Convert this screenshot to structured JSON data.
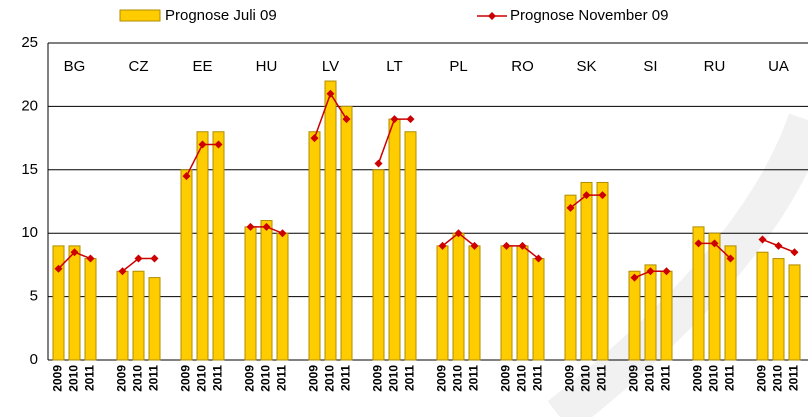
{
  "chart_data": {
    "type": "bar",
    "groups": [
      "BG",
      "CZ",
      "EE",
      "HU",
      "LV",
      "LT",
      "PL",
      "RO",
      "SK",
      "SI",
      "RU",
      "UA"
    ],
    "categories": [
      "2009",
      "2010",
      "2011",
      "2009",
      "2010",
      "2011",
      "2009",
      "2010",
      "2011",
      "2009",
      "2010",
      "2011",
      "2009",
      "2010",
      "2011",
      "2009",
      "2010",
      "2011",
      "2009",
      "2010",
      "2011",
      "2009",
      "2010",
      "2011",
      "2009",
      "2010",
      "2011",
      "2009",
      "2010",
      "2011",
      "2009",
      "2010",
      "2011",
      "2009",
      "2010",
      "2011"
    ],
    "series": [
      {
        "name": "Prognose Juli 09",
        "type": "bar",
        "color": "#ffcc00",
        "values": [
          9,
          9,
          8,
          7,
          7,
          6.5,
          15,
          18,
          18,
          10.5,
          11,
          10,
          18,
          22,
          20,
          15,
          19,
          18,
          9,
          10,
          9,
          9,
          9,
          8,
          13,
          14,
          14,
          7,
          7.5,
          7,
          10.5,
          10,
          9,
          8.5,
          8,
          7.5
        ]
      },
      {
        "name": "Prognose November 09",
        "type": "line",
        "color": "#cc0000",
        "values": [
          7.2,
          8.5,
          8,
          7,
          8,
          8,
          14.5,
          17,
          17,
          10.5,
          10.5,
          10,
          17.5,
          21,
          19,
          15.5,
          19,
          19,
          9,
          10,
          9,
          9,
          9,
          8,
          12,
          13,
          13,
          6.5,
          7,
          7,
          9.2,
          9.2,
          8,
          9.5,
          9,
          8.5
        ]
      }
    ],
    "ylim": [
      0,
      25
    ],
    "yticks": [
      0,
      5,
      10,
      15,
      20,
      25
    ],
    "grid": true
  }
}
